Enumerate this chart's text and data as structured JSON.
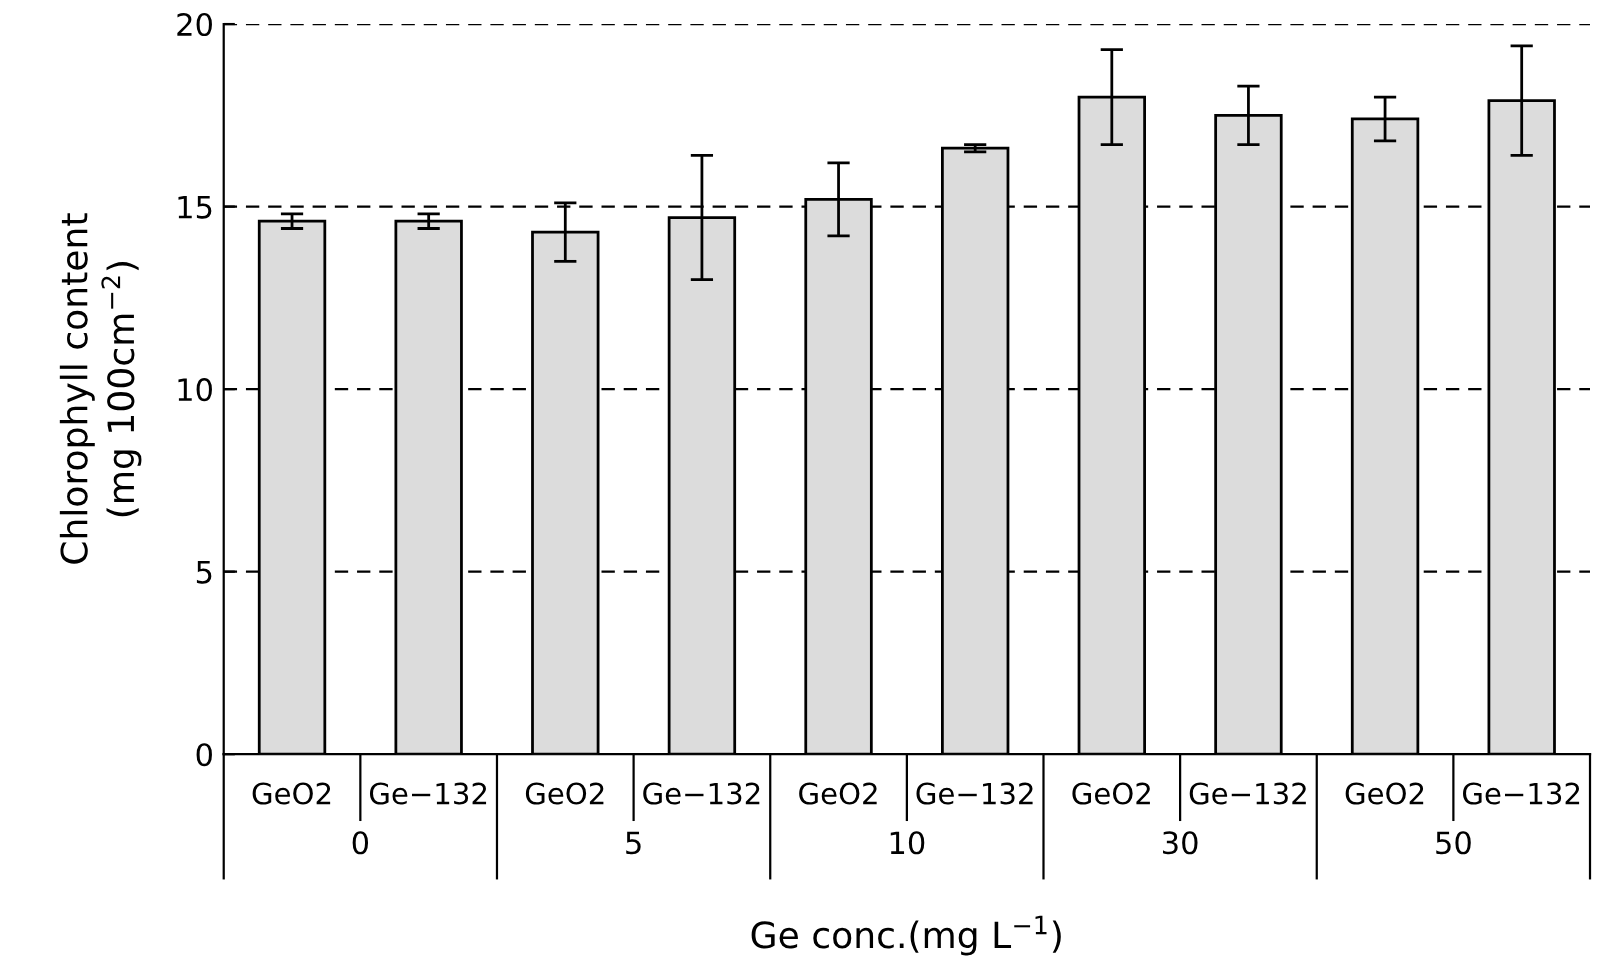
{
  "chart_data": {
    "type": "bar",
    "xlabel": "Ge conc.(mg L$^{−1}$)",
    "ylabel": "Chlorophyll content\n(mg 100cm$^{−2}$)",
    "categories": [
      "GeO2",
      "Ge−132",
      "GeO2",
      "Ge−132",
      "GeO2",
      "Ge−132",
      "GeO2",
      "Ge−132",
      "GeO2",
      "Ge−132"
    ],
    "values": [
      14.6,
      14.6,
      14.3,
      14.7,
      15.2,
      16.6,
      18.0,
      17.5,
      17.4,
      17.9
    ],
    "errors": [
      0.2,
      0.2,
      0.8,
      1.7,
      1.0,
      0.1,
      1.3,
      0.8,
      0.6,
      1.5
    ],
    "color": "#dcdcdc",
    "annotations": [
      "0",
      "5",
      "10",
      "30",
      "50"
    ],
    "ylim": [
      0,
      20
    ],
    "yticks": [
      0,
      5,
      10,
      15,
      20
    ],
    "grid": "y",
    "legend": false
  }
}
